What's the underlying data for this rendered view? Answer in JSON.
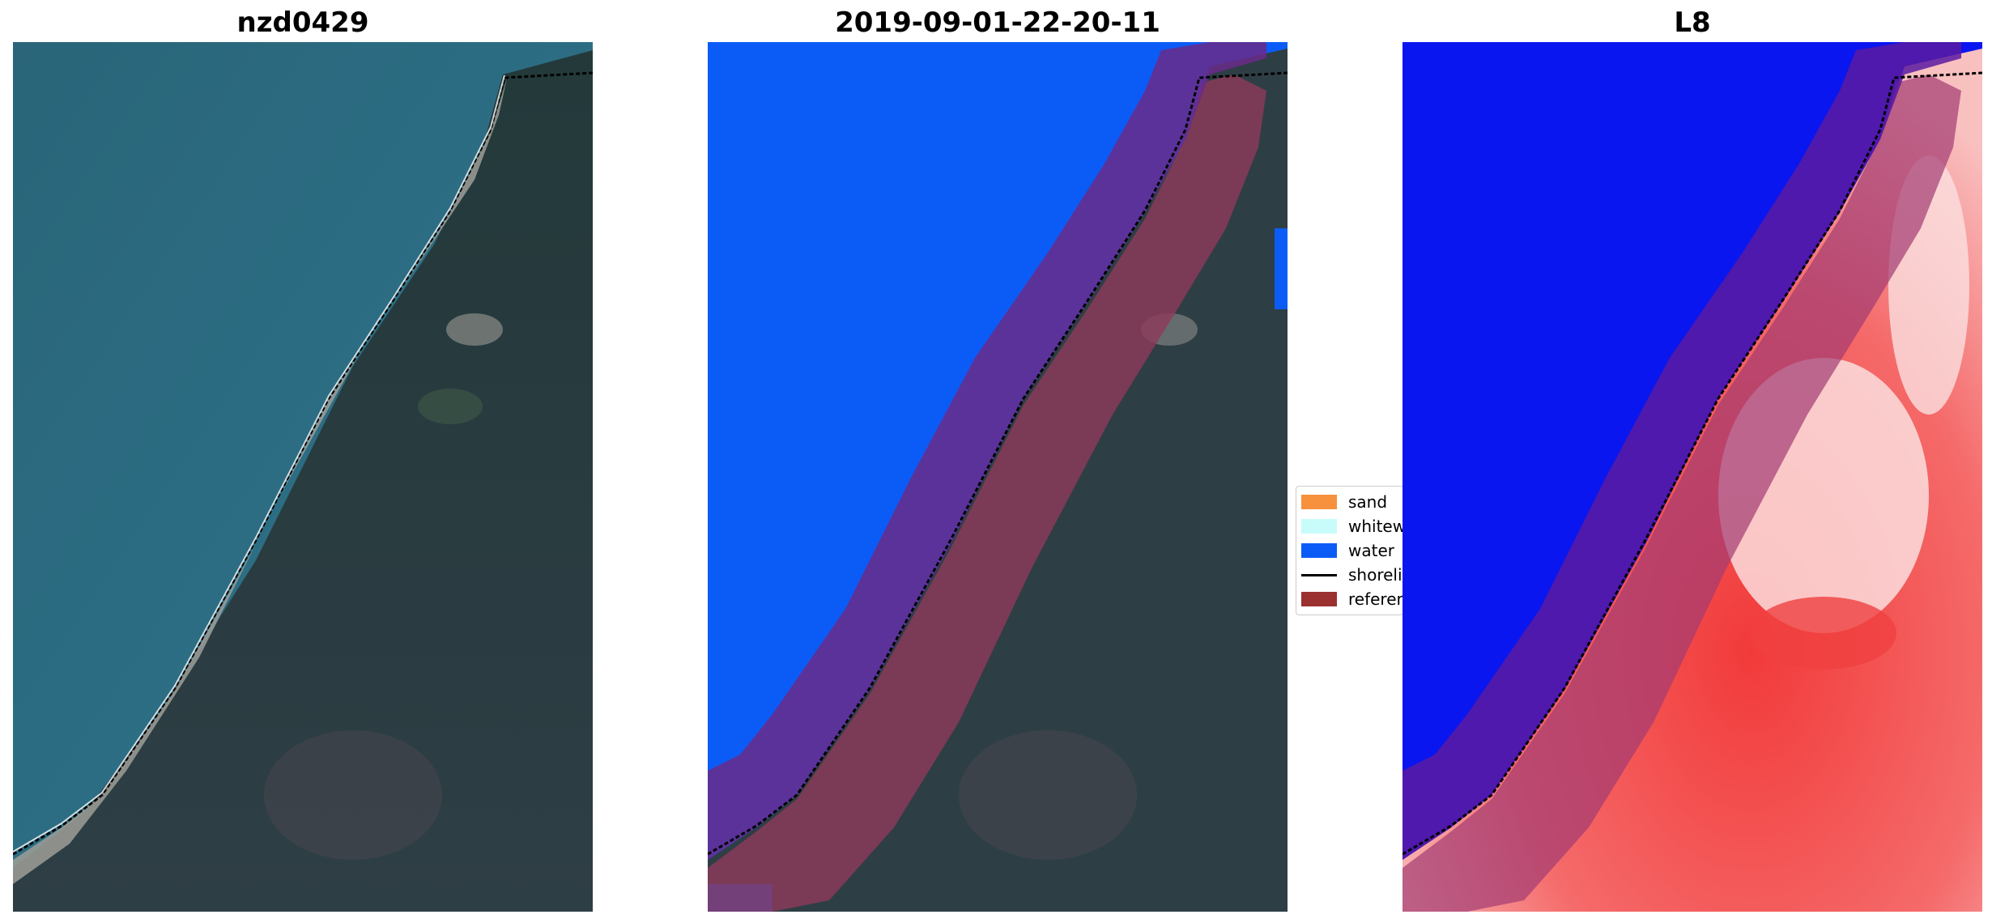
{
  "panels": [
    {
      "title": "nzd0429"
    },
    {
      "title": "2019-09-01-22-20-11"
    },
    {
      "title": "L8"
    }
  ],
  "legend": {
    "items": [
      {
        "label": "sand",
        "color": "#f7913e"
      },
      {
        "label": "whitewater",
        "color": "#c8fcfa"
      },
      {
        "label": "water",
        "color": "#0b5cf7"
      },
      {
        "label": "shoreline",
        "color": "#000000"
      },
      {
        "label": "reference",
        "color": "#9b3030"
      }
    ]
  },
  "colors": {
    "ocean": "#2f6f86",
    "land": "#2d3d3f",
    "beach": "#a8a8a2",
    "water_class": "#0b5cf7",
    "buffer": "#6a2a8a",
    "reference_band": "#8e3a5a",
    "index_water": "#0a16f0",
    "index_land": "#f24848"
  }
}
